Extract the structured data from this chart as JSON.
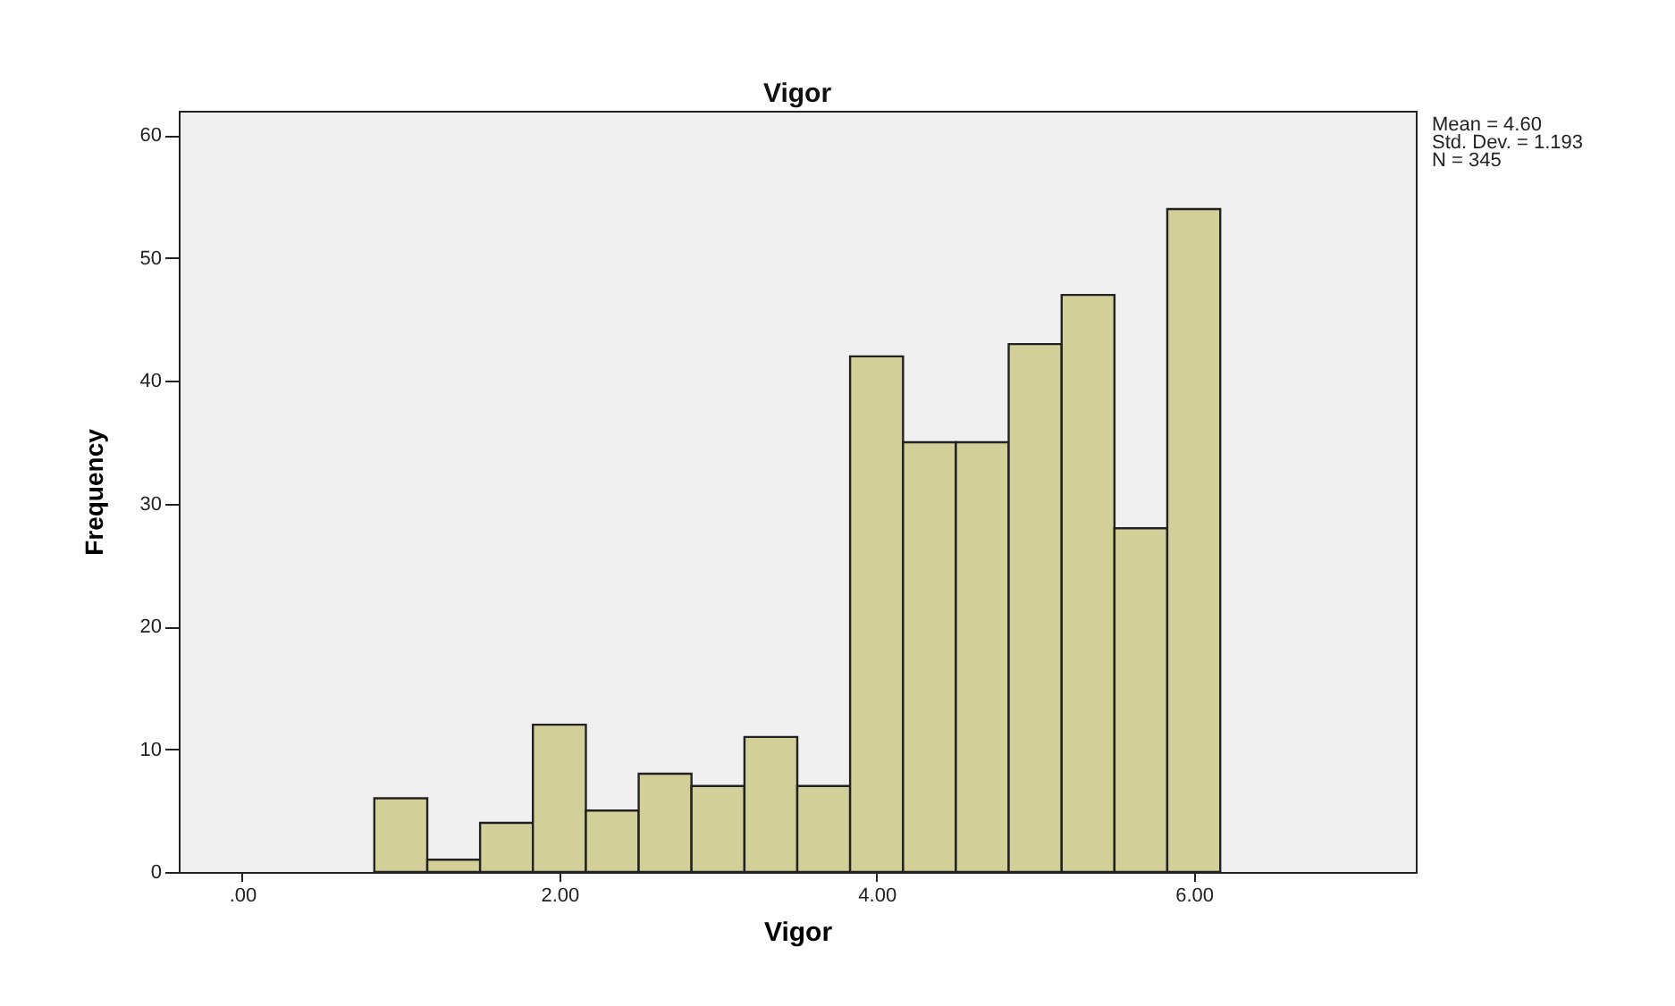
{
  "chart_data": {
    "type": "histogram",
    "title": "Vigor",
    "xlabel": "Vigor",
    "ylabel": "Frequency",
    "bins": [
      0.833,
      1.167,
      1.5,
      1.833,
      2.167,
      2.5,
      2.833,
      3.167,
      3.5,
      3.833,
      4.167,
      4.5,
      4.833,
      5.167,
      5.5,
      5.833,
      6.167
    ],
    "values": [
      6,
      1,
      4,
      12,
      5,
      8,
      7,
      11,
      7,
      42,
      35,
      35,
      43,
      47,
      28,
      54
    ],
    "color": "#d3cf98",
    "xlim": [
      -0.4,
      7.4
    ],
    "xticks": [
      {
        "value": 0,
        "label": ".00"
      },
      {
        "value": 2,
        "label": "2.00"
      },
      {
        "value": 4,
        "label": "4.00"
      },
      {
        "value": 6,
        "label": "6.00"
      }
    ],
    "ylim": [
      0,
      62
    ],
    "yticks": [
      0,
      10,
      20,
      30,
      40,
      50,
      60
    ],
    "grid": false,
    "annotations": [
      "Mean = 4.60",
      "Std. Dev. = 1.193",
      "N = 345"
    ]
  }
}
